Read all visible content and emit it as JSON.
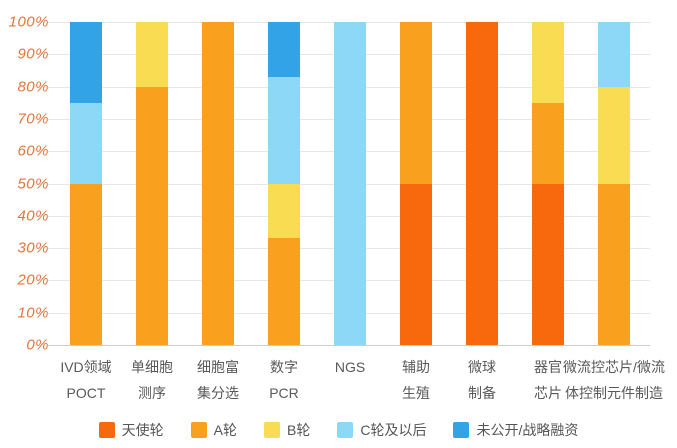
{
  "chart_data": {
    "type": "bar",
    "stacked": true,
    "percent": true,
    "title": "",
    "xlabel": "",
    "ylabel": "",
    "grid": true,
    "legend_position": "bottom",
    "categories": [
      [
        "IVD领域",
        "POCT"
      ],
      [
        "单细胞",
        "测序"
      ],
      [
        "细胞富",
        "集分选"
      ],
      [
        "数字",
        "PCR"
      ],
      [
        "NGS"
      ],
      [
        "辅助",
        "生殖"
      ],
      [
        "微球",
        "制备"
      ],
      [
        "器官",
        "芯片"
      ],
      [
        "微流控芯片/微流",
        "体控制元件制造"
      ]
    ],
    "series": [
      {
        "name": "天使轮",
        "color": "#f8690e",
        "values": [
          0,
          0,
          0,
          0,
          0,
          50,
          100,
          50,
          0
        ]
      },
      {
        "name": "A轮",
        "color": "#f9a11e",
        "values": [
          50,
          80,
          100,
          33,
          0,
          50,
          0,
          25,
          50
        ]
      },
      {
        "name": "B轮",
        "color": "#fadc52",
        "values": [
          0,
          20,
          0,
          17,
          0,
          0,
          0,
          25,
          30
        ]
      },
      {
        "name": "C轮及以后",
        "color": "#8ed8f7",
        "values": [
          25,
          0,
          0,
          33,
          100,
          0,
          0,
          0,
          20
        ]
      },
      {
        "name": "未公开/战略融资",
        "color": "#33a3e8",
        "values": [
          25,
          0,
          0,
          17,
          0,
          0,
          0,
          0,
          0
        ]
      }
    ],
    "y_axis": {
      "min": 0,
      "max": 100,
      "tick_step": 10,
      "ticks": [
        "100%",
        "90%",
        "80%",
        "70%",
        "60%",
        "50%",
        "40%",
        "30%",
        "20%",
        "10%",
        "0%"
      ],
      "tick_color": "#e2753c"
    }
  },
  "layout_colors": {
    "background": "#ffffff",
    "gridline": "#e6e6e6",
    "baseline": "#cccccc",
    "category_label": "#595959",
    "legend_label": "#555555"
  }
}
